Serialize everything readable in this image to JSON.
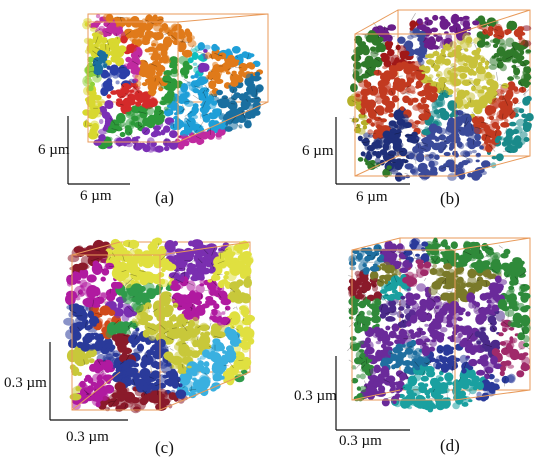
{
  "panels": [
    {
      "id": "a",
      "label": "(a)",
      "scale_x": "6 µm",
      "scale_y": "6 µm",
      "palette": [
        "#1f9fd8",
        "#7b2fb5",
        "#e0d12a",
        "#2d9a3a",
        "#d42a2a",
        "#0fbfbf",
        "#e07a1a",
        "#2b3fa8",
        "#c02aa0",
        "#8fd13a",
        "#d8d830",
        "#1a6fa0"
      ]
    },
    {
      "id": "b",
      "label": "(b)",
      "scale_x": "6 µm",
      "scale_y": "6 µm",
      "palette": [
        "#8a1020",
        "#b5b02a",
        "#1f2f7a",
        "#6b1e8a",
        "#2f7a2a",
        "#c23a20",
        "#a01818",
        "#c8c23a",
        "#3a4a9a",
        "#1a8a8a"
      ]
    },
    {
      "id": "c",
      "label": "(c)",
      "scale_x": "0.3 µm",
      "scale_y": "0.3 µm",
      "palette": [
        "#c8c83a",
        "#2a3a9a",
        "#8a1a2a",
        "#2f9a4a",
        "#7a2fb0",
        "#1fb0c0",
        "#d04a1a",
        "#3ab0e0",
        "#b01aa0",
        "#e0e040"
      ]
    },
    {
      "id": "d",
      "label": "(d)",
      "scale_x": "0.3 µm",
      "scale_y": "0.3 µm",
      "palette": [
        "#1aa0a0",
        "#6a2a9a",
        "#2a3a9a",
        "#8a1a2a",
        "#7a7a2a",
        "#2f8a3a",
        "#a02a6a",
        "#1f6fa0",
        "#4a2a8a",
        "#0f8f8f"
      ]
    }
  ],
  "colors": {
    "box_edge": "#e89a5a",
    "axis": "#111111"
  }
}
